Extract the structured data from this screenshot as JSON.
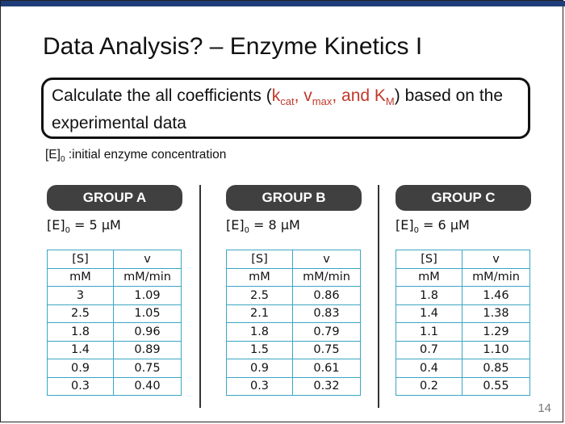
{
  "slide": {
    "title": "Data Analysis? – Enzyme Kinetics I",
    "task": {
      "part1": "Calculate the all coefficients (",
      "kcat": "k",
      "kcat_sub": "cat",
      "sep1": ", ",
      "vmax": "v",
      "vmax_sub": "max",
      "sep2": ", and K",
      "km_sub": "M",
      "part2": ") based on the experimental data"
    },
    "note": {
      "prefix": "[E]",
      "sub": "0",
      "text": " :initial enzyme concentration"
    },
    "page_number": "14",
    "accent_color": "#c0392b",
    "table_border_color": "#3aa6c4"
  },
  "groups": [
    {
      "label": "GROUP A",
      "conc_prefix": "[E]",
      "conc_sub": "0",
      "conc_value": " = 5 μM",
      "header": [
        "[S]",
        "v"
      ],
      "units": [
        "mM",
        "mM/min"
      ],
      "rows": [
        [
          "3",
          "1.09"
        ],
        [
          "2.5",
          "1.05"
        ],
        [
          "1.8",
          "0.96"
        ],
        [
          "1.4",
          "0.89"
        ],
        [
          "0.9",
          "0.75"
        ],
        [
          "0.3",
          "0.40"
        ]
      ]
    },
    {
      "label": "GROUP B",
      "conc_prefix": "[E]",
      "conc_sub": "0",
      "conc_value": " = 8 μM",
      "header": [
        "[S]",
        "v"
      ],
      "units": [
        "mM",
        "mM/min"
      ],
      "rows": [
        [
          "2.5",
          "0.86"
        ],
        [
          "2.1",
          "0.83"
        ],
        [
          "1.8",
          "0.79"
        ],
        [
          "1.5",
          "0.75"
        ],
        [
          "0.9",
          "0.61"
        ],
        [
          "0.3",
          "0.32"
        ]
      ]
    },
    {
      "label": "GROUP C",
      "conc_prefix": "[E]",
      "conc_sub": "0",
      "conc_value": " = 6 μM",
      "header": [
        "[S]",
        "v"
      ],
      "units": [
        "mM",
        "mM/min"
      ],
      "rows": [
        [
          "1.8",
          "1.46"
        ],
        [
          "1.4",
          "1.38"
        ],
        [
          "1.1",
          "1.29"
        ],
        [
          "0.7",
          "1.10"
        ],
        [
          "0.4",
          "0.85"
        ],
        [
          "0.2",
          "0.55"
        ]
      ]
    }
  ]
}
